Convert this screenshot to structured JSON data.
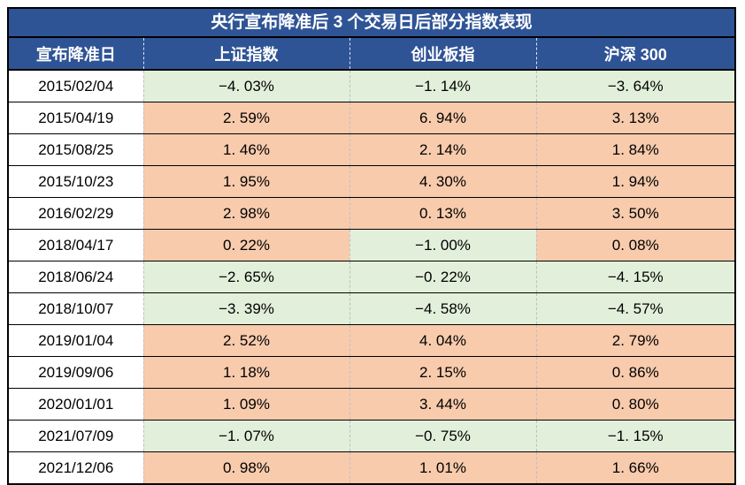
{
  "title": "央行宣布降准后 3 个交易日后部分指数表现",
  "colors": {
    "header_bg": "#2F5496",
    "header_text": "#FFFFFF",
    "positive_bg": "#F8CBAD",
    "negative_bg": "#E2EFDA",
    "cell_text": "#000000",
    "border": "#000000",
    "column_divider_dash": "#BFBFBF"
  },
  "table": {
    "columns": [
      "宣布降准日",
      "上证指数",
      "创业板指",
      "沪深 300"
    ],
    "rows": [
      {
        "date": "2015/02/04",
        "values": [
          "−4. 03%",
          "−1. 14%",
          "−3. 64%"
        ]
      },
      {
        "date": "2015/04/19",
        "values": [
          "2. 59%",
          "6. 94%",
          "3. 13%"
        ]
      },
      {
        "date": "2015/08/25",
        "values": [
          "1. 46%",
          "2. 14%",
          "1. 84%"
        ]
      },
      {
        "date": "2015/10/23",
        "values": [
          "1. 95%",
          "4. 30%",
          "1. 94%"
        ]
      },
      {
        "date": "2016/02/29",
        "values": [
          "2. 98%",
          "0. 13%",
          "3. 50%"
        ]
      },
      {
        "date": "2018/04/17",
        "values": [
          "0. 22%",
          "−1. 00%",
          "0. 08%"
        ]
      },
      {
        "date": "2018/06/24",
        "values": [
          "−2. 65%",
          "−0. 22%",
          "−4. 15%"
        ]
      },
      {
        "date": "2018/10/07",
        "values": [
          "−3. 39%",
          "−4. 58%",
          "−4. 57%"
        ]
      },
      {
        "date": "2019/01/04",
        "values": [
          "2. 52%",
          "4. 04%",
          "2. 79%"
        ]
      },
      {
        "date": "2019/09/06",
        "values": [
          "1. 18%",
          "2. 15%",
          "0. 86%"
        ]
      },
      {
        "date": "2020/01/01",
        "values": [
          "1. 09%",
          "3. 44%",
          "0. 80%"
        ]
      },
      {
        "date": "2021/07/09",
        "values": [
          "−1. 07%",
          "−0. 75%",
          "−1. 15%"
        ]
      },
      {
        "date": "2021/12/06",
        "values": [
          "0. 98%",
          "1. 01%",
          "1. 66%"
        ]
      }
    ]
  },
  "chart_data": {
    "type": "table",
    "title": "央行宣布降准后 3 个交易日后部分指数表现",
    "categories": [
      "2015/02/04",
      "2015/04/19",
      "2015/08/25",
      "2015/10/23",
      "2016/02/29",
      "2018/04/17",
      "2018/06/24",
      "2018/10/07",
      "2019/01/04",
      "2019/09/06",
      "2020/01/01",
      "2021/07/09",
      "2021/12/06"
    ],
    "category_label": "宣布降准日",
    "series": [
      {
        "name": "上证指数",
        "values": [
          -4.03,
          2.59,
          1.46,
          1.95,
          2.98,
          0.22,
          -2.65,
          -3.39,
          2.52,
          1.18,
          1.09,
          -1.07,
          0.98
        ]
      },
      {
        "name": "创业板指",
        "values": [
          -1.14,
          6.94,
          2.14,
          4.3,
          0.13,
          -1.0,
          -0.22,
          -4.58,
          4.04,
          2.15,
          3.44,
          -0.75,
          1.01
        ]
      },
      {
        "name": "沪深 300",
        "values": [
          -3.64,
          3.13,
          1.84,
          1.94,
          3.5,
          0.08,
          -4.15,
          -4.57,
          2.79,
          0.86,
          0.8,
          -1.15,
          1.66
        ]
      }
    ],
    "unit": "%",
    "cell_color_rule": {
      "negative": "#E2EFDA",
      "positive": "#F8CBAD"
    }
  }
}
